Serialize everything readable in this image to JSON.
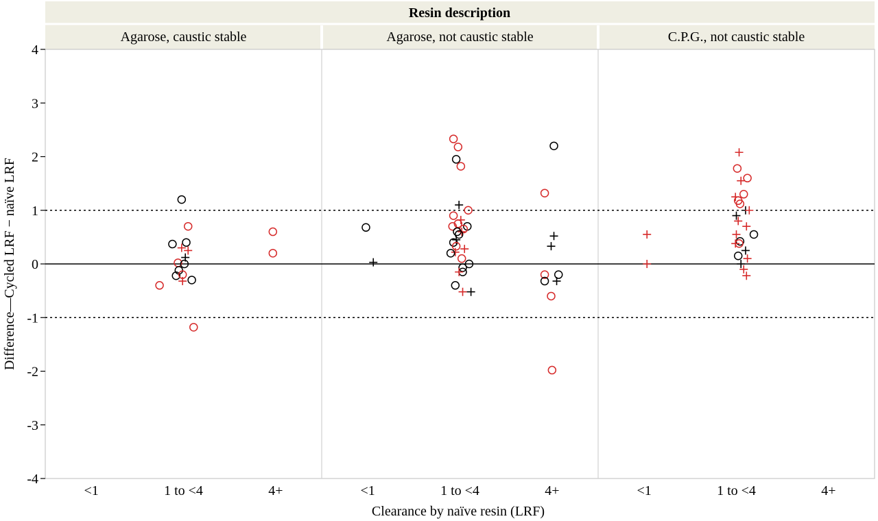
{
  "chart_data": {
    "type": "scatter",
    "facet_title": "Resin description",
    "panels": [
      "Agarose, caustic stable",
      "Agarose, not caustic stable",
      "C.P.G., not caustic stable"
    ],
    "categories": [
      "<1",
      "1 to <4",
      "4+"
    ],
    "xlabel": "Clearance by naïve resin (LRF)",
    "ylabel": "Difference—Cycled LRF − naïve LRF",
    "ylim": [
      -4,
      4
    ],
    "yticks": [
      "4",
      "3",
      "2",
      "1",
      "0",
      "-1",
      "-2",
      "-3",
      "-4"
    ],
    "reference_lines": [
      {
        "y": 0,
        "style": "solid"
      },
      {
        "y": 1,
        "style": "dotted"
      },
      {
        "y": -1,
        "style": "dotted"
      }
    ],
    "colors": {
      "black": "#000000",
      "red": "#d62a2a"
    },
    "points": [
      {
        "panel": 0,
        "x": 1.98,
        "y": 1.2,
        "marker": "circle",
        "color": "black"
      },
      {
        "panel": 0,
        "x": 1.88,
        "y": 0.37,
        "marker": "circle",
        "color": "black"
      },
      {
        "panel": 0,
        "x": 2.03,
        "y": 0.4,
        "marker": "circle",
        "color": "black"
      },
      {
        "panel": 0,
        "x": 2.05,
        "y": 0.7,
        "marker": "circle",
        "color": "red"
      },
      {
        "panel": 0,
        "x": 1.98,
        "y": 0.3,
        "marker": "plus",
        "color": "red"
      },
      {
        "panel": 0,
        "x": 2.05,
        "y": 0.25,
        "marker": "plus",
        "color": "red"
      },
      {
        "panel": 0,
        "x": 2.02,
        "y": 0.12,
        "marker": "plus",
        "color": "black"
      },
      {
        "panel": 0,
        "x": 1.94,
        "y": 0.02,
        "marker": "circle",
        "color": "red"
      },
      {
        "panel": 0,
        "x": 2.01,
        "y": 0.0,
        "marker": "circle",
        "color": "black"
      },
      {
        "panel": 0,
        "x": 1.95,
        "y": -0.12,
        "marker": "circle",
        "color": "black"
      },
      {
        "panel": 0,
        "x": 1.92,
        "y": -0.22,
        "marker": "circle",
        "color": "black"
      },
      {
        "panel": 0,
        "x": 1.99,
        "y": -0.2,
        "marker": "circle",
        "color": "red"
      },
      {
        "panel": 0,
        "x": 1.99,
        "y": -0.32,
        "marker": "plus",
        "color": "red"
      },
      {
        "panel": 0,
        "x": 2.09,
        "y": -0.3,
        "marker": "circle",
        "color": "black"
      },
      {
        "panel": 0,
        "x": 1.74,
        "y": -0.4,
        "marker": "circle",
        "color": "red"
      },
      {
        "panel": 0,
        "x": 2.11,
        "y": -1.18,
        "marker": "circle",
        "color": "red"
      },
      {
        "panel": 0,
        "x": 2.97,
        "y": 0.6,
        "marker": "circle",
        "color": "red"
      },
      {
        "panel": 0,
        "x": 2.97,
        "y": 0.2,
        "marker": "circle",
        "color": "red"
      },
      {
        "panel": 1,
        "x": 0.98,
        "y": 0.68,
        "marker": "circle",
        "color": "black"
      },
      {
        "panel": 1,
        "x": 1.06,
        "y": 0.03,
        "marker": "plus",
        "color": "black"
      },
      {
        "panel": 1,
        "x": 1.93,
        "y": 2.33,
        "marker": "circle",
        "color": "red"
      },
      {
        "panel": 1,
        "x": 1.98,
        "y": 2.18,
        "marker": "circle",
        "color": "red"
      },
      {
        "panel": 1,
        "x": 1.96,
        "y": 1.95,
        "marker": "circle",
        "color": "black"
      },
      {
        "panel": 1,
        "x": 2.01,
        "y": 1.82,
        "marker": "circle",
        "color": "red"
      },
      {
        "panel": 1,
        "x": 1.99,
        "y": 1.1,
        "marker": "plus",
        "color": "black"
      },
      {
        "panel": 1,
        "x": 2.09,
        "y": 1.0,
        "marker": "circle",
        "color": "red"
      },
      {
        "panel": 1,
        "x": 1.93,
        "y": 0.9,
        "marker": "circle",
        "color": "red"
      },
      {
        "panel": 1,
        "x": 2.01,
        "y": 0.82,
        "marker": "plus",
        "color": "red"
      },
      {
        "panel": 1,
        "x": 1.98,
        "y": 0.75,
        "marker": "circle",
        "color": "red"
      },
      {
        "panel": 1,
        "x": 1.92,
        "y": 0.7,
        "marker": "circle",
        "color": "red"
      },
      {
        "panel": 1,
        "x": 2.08,
        "y": 0.7,
        "marker": "circle",
        "color": "black"
      },
      {
        "panel": 1,
        "x": 2.04,
        "y": 0.65,
        "marker": "circle",
        "color": "red"
      },
      {
        "panel": 1,
        "x": 1.97,
        "y": 0.6,
        "marker": "circle",
        "color": "black"
      },
      {
        "panel": 1,
        "x": 2.02,
        "y": 0.6,
        "marker": "plus",
        "color": "red"
      },
      {
        "panel": 1,
        "x": 1.99,
        "y": 0.55,
        "marker": "circle",
        "color": "black"
      },
      {
        "panel": 1,
        "x": 1.96,
        "y": 0.45,
        "marker": "plus",
        "color": "black"
      },
      {
        "panel": 1,
        "x": 1.93,
        "y": 0.4,
        "marker": "circle",
        "color": "black"
      },
      {
        "panel": 1,
        "x": 1.96,
        "y": 0.33,
        "marker": "circle",
        "color": "red"
      },
      {
        "panel": 1,
        "x": 2.05,
        "y": 0.28,
        "marker": "plus",
        "color": "red"
      },
      {
        "panel": 1,
        "x": 1.95,
        "y": 0.22,
        "marker": "plus",
        "color": "red"
      },
      {
        "panel": 1,
        "x": 1.9,
        "y": 0.2,
        "marker": "circle",
        "color": "black"
      },
      {
        "panel": 1,
        "x": 2.02,
        "y": 0.1,
        "marker": "circle",
        "color": "red"
      },
      {
        "panel": 1,
        "x": 2.1,
        "y": 0.0,
        "marker": "circle",
        "color": "black"
      },
      {
        "panel": 1,
        "x": 2.03,
        "y": -0.07,
        "marker": "circle",
        "color": "black"
      },
      {
        "panel": 1,
        "x": 2.03,
        "y": -0.15,
        "marker": "circle",
        "color": "black"
      },
      {
        "panel": 1,
        "x": 1.99,
        "y": -0.15,
        "marker": "plus",
        "color": "red"
      },
      {
        "panel": 1,
        "x": 1.95,
        "y": -0.4,
        "marker": "circle",
        "color": "black"
      },
      {
        "panel": 1,
        "x": 2.03,
        "y": -0.52,
        "marker": "plus",
        "color": "red"
      },
      {
        "panel": 1,
        "x": 2.12,
        "y": -0.52,
        "marker": "plus",
        "color": "black"
      },
      {
        "panel": 1,
        "x": 3.02,
        "y": 2.2,
        "marker": "circle",
        "color": "black"
      },
      {
        "panel": 1,
        "x": 2.92,
        "y": 1.32,
        "marker": "circle",
        "color": "red"
      },
      {
        "panel": 1,
        "x": 3.02,
        "y": 0.52,
        "marker": "plus",
        "color": "black"
      },
      {
        "panel": 1,
        "x": 2.99,
        "y": 0.33,
        "marker": "plus",
        "color": "black"
      },
      {
        "panel": 1,
        "x": 2.92,
        "y": -0.2,
        "marker": "circle",
        "color": "red"
      },
      {
        "panel": 1,
        "x": 3.07,
        "y": -0.2,
        "marker": "circle",
        "color": "black"
      },
      {
        "panel": 1,
        "x": 2.92,
        "y": -0.32,
        "marker": "circle",
        "color": "black"
      },
      {
        "panel": 1,
        "x": 3.05,
        "y": -0.32,
        "marker": "plus",
        "color": "black"
      },
      {
        "panel": 1,
        "x": 2.99,
        "y": -0.6,
        "marker": "circle",
        "color": "red"
      },
      {
        "panel": 1,
        "x": 3.0,
        "y": -1.98,
        "marker": "circle",
        "color": "red"
      },
      {
        "panel": 2,
        "x": 1.03,
        "y": 0.55,
        "marker": "plus",
        "color": "red"
      },
      {
        "panel": 2,
        "x": 1.03,
        "y": 0.0,
        "marker": "plus",
        "color": "red"
      },
      {
        "panel": 2,
        "x": 2.03,
        "y": 2.08,
        "marker": "plus",
        "color": "red"
      },
      {
        "panel": 2,
        "x": 2.01,
        "y": 1.78,
        "marker": "circle",
        "color": "red"
      },
      {
        "panel": 2,
        "x": 2.12,
        "y": 1.6,
        "marker": "circle",
        "color": "red"
      },
      {
        "panel": 2,
        "x": 2.05,
        "y": 1.55,
        "marker": "plus",
        "color": "red"
      },
      {
        "panel": 2,
        "x": 2.08,
        "y": 1.3,
        "marker": "circle",
        "color": "red"
      },
      {
        "panel": 2,
        "x": 1.99,
        "y": 1.25,
        "marker": "plus",
        "color": "red"
      },
      {
        "panel": 2,
        "x": 2.02,
        "y": 1.18,
        "marker": "circle",
        "color": "red"
      },
      {
        "panel": 2,
        "x": 2.04,
        "y": 1.12,
        "marker": "circle",
        "color": "red"
      },
      {
        "panel": 2,
        "x": 2.1,
        "y": 1.0,
        "marker": "plus",
        "color": "black"
      },
      {
        "panel": 2,
        "x": 2.14,
        "y": 1.0,
        "marker": "plus",
        "color": "red"
      },
      {
        "panel": 2,
        "x": 2.0,
        "y": 0.9,
        "marker": "plus",
        "color": "black"
      },
      {
        "panel": 2,
        "x": 2.02,
        "y": 0.8,
        "marker": "plus",
        "color": "red"
      },
      {
        "panel": 2,
        "x": 2.11,
        "y": 0.7,
        "marker": "plus",
        "color": "red"
      },
      {
        "panel": 2,
        "x": 2.0,
        "y": 0.55,
        "marker": "plus",
        "color": "red"
      },
      {
        "panel": 2,
        "x": 2.19,
        "y": 0.55,
        "marker": "circle",
        "color": "black"
      },
      {
        "panel": 2,
        "x": 2.04,
        "y": 0.42,
        "marker": "circle",
        "color": "black"
      },
      {
        "panel": 2,
        "x": 1.99,
        "y": 0.38,
        "marker": "plus",
        "color": "red"
      },
      {
        "panel": 2,
        "x": 2.03,
        "y": 0.38,
        "marker": "circle",
        "color": "red"
      },
      {
        "panel": 2,
        "x": 2.1,
        "y": 0.25,
        "marker": "plus",
        "color": "black"
      },
      {
        "panel": 2,
        "x": 2.02,
        "y": 0.15,
        "marker": "circle",
        "color": "black"
      },
      {
        "panel": 2,
        "x": 2.12,
        "y": 0.1,
        "marker": "plus",
        "color": "red"
      },
      {
        "panel": 2,
        "x": 2.05,
        "y": 0.0,
        "marker": "plus",
        "color": "black"
      },
      {
        "panel": 2,
        "x": 2.08,
        "y": -0.1,
        "marker": "plus",
        "color": "red"
      },
      {
        "panel": 2,
        "x": 2.11,
        "y": -0.22,
        "marker": "plus",
        "color": "red"
      }
    ]
  }
}
